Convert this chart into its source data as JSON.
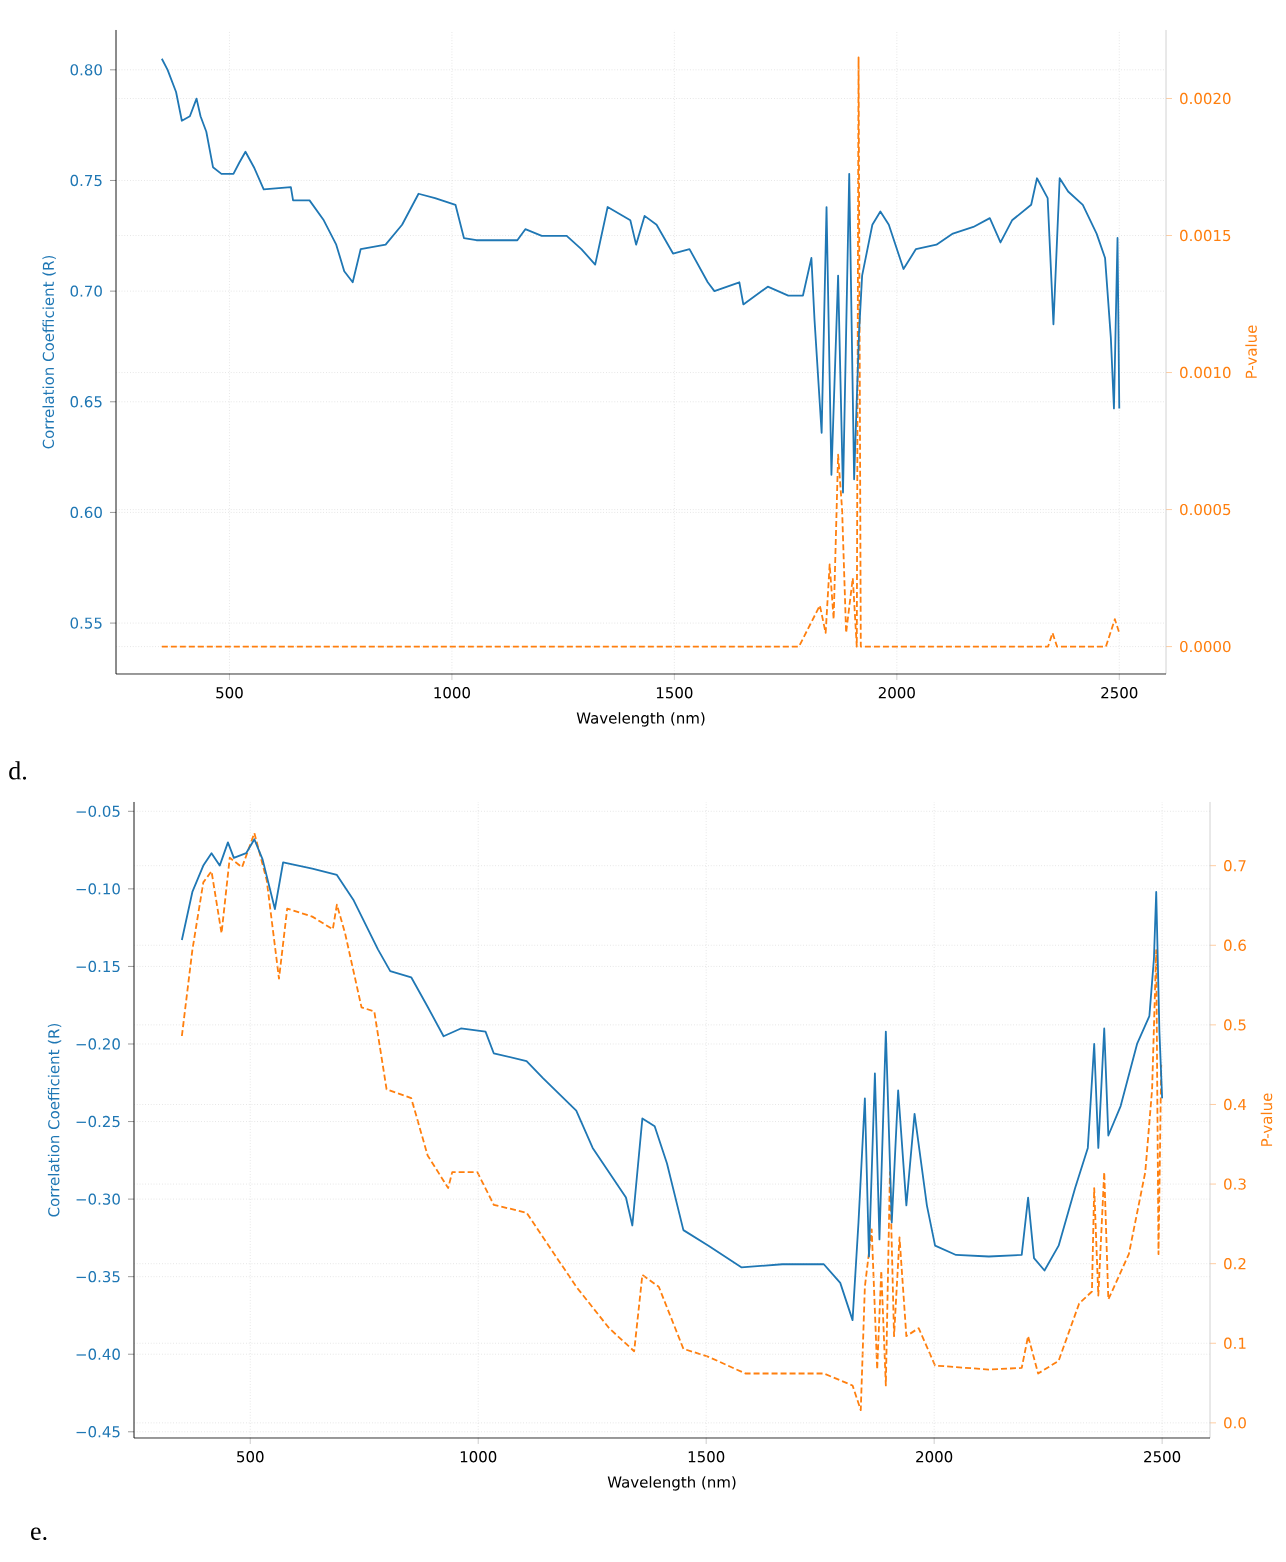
{
  "chart_data": [
    {
      "type": "line",
      "xlabel": "Wavelength (nm)",
      "ylabel": "Correlation Coefficient (R)",
      "y2label": "P-value",
      "annotations": [
        "d."
      ],
      "xlim": [
        245,
        2605
      ],
      "xticks": [
        500,
        1000,
        1500,
        2000,
        2500
      ],
      "ylim": [
        0.527,
        0.818
      ],
      "yticks": [
        {
          "value": 0.55,
          "label": "0.55"
        },
        {
          "value": 0.6,
          "label": "0.60"
        },
        {
          "value": 0.65,
          "label": "0.65"
        },
        {
          "value": 0.7,
          "label": "0.70"
        },
        {
          "value": 0.75,
          "label": "0.75"
        },
        {
          "value": 0.8,
          "label": "0.80"
        }
      ],
      "y2lim": [
        -0.0001,
        0.00225
      ],
      "y2ticks": [
        {
          "value": 0,
          "label": "0.0000"
        },
        {
          "value": 0.0005,
          "label": "0.0005"
        },
        {
          "value": 0.001,
          "label": "0.0010"
        },
        {
          "value": 0.0015,
          "label": "0.0015"
        },
        {
          "value": 0.002,
          "label": "0.0020"
        }
      ],
      "grid": true,
      "marker": "none",
      "series": [
        {
          "color": "#1f77b4",
          "line_style": "solid",
          "x": [
            348,
            361,
            380,
            393,
            411,
            426,
            435,
            448,
            463,
            482,
            509,
            522,
            536,
            555,
            577,
            638,
            643,
            680,
            712,
            740,
            758,
            777,
            795,
            851,
            888,
            925,
            962,
            1008,
            1027,
            1055,
            1147,
            1165,
            1202,
            1258,
            1291,
            1322,
            1350,
            1401,
            1414,
            1433,
            1460,
            1497,
            1534,
            1575,
            1590,
            1646,
            1655,
            1710,
            1756,
            1789,
            1808,
            1815,
            1831,
            1842,
            1853,
            1868,
            1879,
            1893,
            1904,
            1915,
            1922,
            1945,
            1963,
            1982,
            2015,
            2043,
            2089,
            2126,
            2172,
            2209,
            2233,
            2259,
            2302,
            2315,
            2339,
            2352,
            2366,
            2385,
            2418,
            2449,
            2468,
            2481,
            2488,
            2496,
            2500
          ],
          "values": [
            0.805,
            0.8,
            0.79,
            0.777,
            0.779,
            0.787,
            0.779,
            0.772,
            0.756,
            0.753,
            0.753,
            0.758,
            0.763,
            0.756,
            0.746,
            0.747,
            0.741,
            0.741,
            0.732,
            0.721,
            0.709,
            0.704,
            0.719,
            0.721,
            0.73,
            0.744,
            0.742,
            0.739,
            0.724,
            0.723,
            0.723,
            0.728,
            0.725,
            0.725,
            0.719,
            0.712,
            0.738,
            0.732,
            0.721,
            0.734,
            0.73,
            0.717,
            0.719,
            0.704,
            0.7,
            0.704,
            0.694,
            0.702,
            0.698,
            0.698,
            0.715,
            0.687,
            0.636,
            0.738,
            0.617,
            0.707,
            0.609,
            0.753,
            0.615,
            0.681,
            0.707,
            0.73,
            0.736,
            0.73,
            0.71,
            0.719,
            0.721,
            0.726,
            0.729,
            0.733,
            0.722,
            0.732,
            0.739,
            0.751,
            0.742,
            0.685,
            0.751,
            0.745,
            0.739,
            0.726,
            0.715,
            0.679,
            0.647,
            0.724,
            0.647
          ]
        },
        {
          "color": "#ff7f0e",
          "line_style": "dashed",
          "axis": "y2",
          "x": [
            348,
            777,
            1000,
            1500,
            1600,
            1780,
            1827,
            1840,
            1849,
            1858,
            1868,
            1877,
            1886,
            1901,
            1910,
            1914,
            1919,
            1950,
            2000,
            2340,
            2350,
            2360,
            2470,
            2490,
            2500
          ],
          "values": [
            0,
            0,
            0,
            0,
            0,
            0,
            0.00015,
            5e-05,
            0.0003,
            0.0001,
            0.0007,
            0.0005,
            5e-05,
            0.00025,
            0,
            0.00215,
            0,
            0,
            0,
            0,
            5e-05,
            0,
            0,
            0.0001,
            5e-05
          ]
        }
      ]
    },
    {
      "type": "line",
      "xlabel": "Wavelength (nm)",
      "ylabel": "Correlation Coefficient (R)",
      "y2label": "P-value",
      "annotations": [
        "e."
      ],
      "xlim": [
        245,
        2605
      ],
      "xticks": [
        500,
        1000,
        1500,
        2000,
        2500
      ],
      "ylim": [
        -0.454,
        -0.044
      ],
      "yticks": [
        {
          "value": -0.45,
          "label": "−0.45"
        },
        {
          "value": -0.4,
          "label": "−0.40"
        },
        {
          "value": -0.35,
          "label": "−0.35"
        },
        {
          "value": -0.3,
          "label": "−0.30"
        },
        {
          "value": -0.25,
          "label": "−0.25"
        },
        {
          "value": -0.2,
          "label": "−0.20"
        },
        {
          "value": -0.15,
          "label": "−0.15"
        },
        {
          "value": -0.1,
          "label": "−0.10"
        },
        {
          "value": -0.05,
          "label": "−0.05"
        }
      ],
      "y2lim": [
        -0.019,
        0.78
      ],
      "y2ticks": [
        {
          "value": 0,
          "label": "0.0"
        },
        0.1,
        0.2,
        0.3,
        0.4,
        0.5,
        0.6,
        0.7
      ],
      "grid": true,
      "marker": "none",
      "series": [
        {
          "color": "#1f77b4",
          "line_style": "solid",
          "x": [
            350,
            373,
            397,
            415,
            433,
            451,
            464,
            491,
            509,
            527,
            554,
            572,
            636,
            690,
            726,
            780,
            807,
            853,
            889,
            924,
            962,
            1016,
            1034,
            1106,
            1142,
            1215,
            1251,
            1324,
            1338,
            1360,
            1387,
            1414,
            1450,
            1505,
            1577,
            1667,
            1758,
            1794,
            1821,
            1834,
            1848,
            1857,
            1870,
            1880,
            1894,
            1907,
            1921,
            1939,
            1957,
            1984,
            2002,
            2048,
            2120,
            2192,
            2206,
            2219,
            2242,
            2273,
            2309,
            2337,
            2351,
            2360,
            2373,
            2382,
            2409,
            2445,
            2472,
            2482,
            2487,
            2494,
            2500
          ],
          "values": [
            -0.133,
            -0.102,
            -0.085,
            -0.077,
            -0.085,
            -0.07,
            -0.08,
            -0.077,
            -0.068,
            -0.081,
            -0.113,
            -0.083,
            -0.087,
            -0.091,
            -0.107,
            -0.139,
            -0.153,
            -0.157,
            -0.176,
            -0.195,
            -0.19,
            -0.192,
            -0.206,
            -0.211,
            -0.222,
            -0.243,
            -0.267,
            -0.299,
            -0.317,
            -0.248,
            -0.253,
            -0.277,
            -0.32,
            -0.33,
            -0.344,
            -0.342,
            -0.342,
            -0.354,
            -0.378,
            -0.315,
            -0.235,
            -0.337,
            -0.219,
            -0.326,
            -0.192,
            -0.315,
            -0.23,
            -0.304,
            -0.245,
            -0.304,
            -0.33,
            -0.336,
            -0.337,
            -0.336,
            -0.299,
            -0.338,
            -0.346,
            -0.33,
            -0.293,
            -0.267,
            -0.2,
            -0.267,
            -0.19,
            -0.259,
            -0.24,
            -0.2,
            -0.182,
            -0.145,
            -0.102,
            -0.192,
            -0.235
          ]
        },
        {
          "color": "#ff7f0e",
          "line_style": "dashed",
          "axis": "y2",
          "x": [
            350,
            373,
            397,
            415,
            437,
            455,
            482,
            509,
            536,
            563,
            581,
            636,
            681,
            690,
            708,
            744,
            772,
            799,
            853,
            889,
            934,
            943,
            998,
            1034,
            1106,
            1215,
            1287,
            1342,
            1360,
            1396,
            1450,
            1505,
            1586,
            1758,
            1821,
            1839,
            1848,
            1863,
            1875,
            1884,
            1894,
            1903,
            1912,
            1924,
            1939,
            1966,
            2002,
            2120,
            2192,
            2206,
            2228,
            2273,
            2318,
            2346,
            2351,
            2360,
            2373,
            2382,
            2427,
            2463,
            2478,
            2487,
            2492,
            2498
          ],
          "values": [
            0.486,
            0.594,
            0.679,
            0.693,
            0.615,
            0.71,
            0.698,
            0.741,
            0.682,
            0.558,
            0.646,
            0.636,
            0.62,
            0.651,
            0.615,
            0.522,
            0.517,
            0.419,
            0.408,
            0.336,
            0.295,
            0.315,
            0.315,
            0.274,
            0.264,
            0.171,
            0.119,
            0.09,
            0.186,
            0.171,
            0.093,
            0.083,
            0.062,
            0.062,
            0.047,
            0.016,
            0.171,
            0.243,
            0.067,
            0.191,
            0.047,
            0.315,
            0.109,
            0.233,
            0.109,
            0.119,
            0.072,
            0.067,
            0.069,
            0.109,
            0.062,
            0.078,
            0.15,
            0.165,
            0.295,
            0.16,
            0.315,
            0.155,
            0.212,
            0.315,
            0.419,
            0.594,
            0.212,
            0.45
          ]
        }
      ]
    }
  ]
}
